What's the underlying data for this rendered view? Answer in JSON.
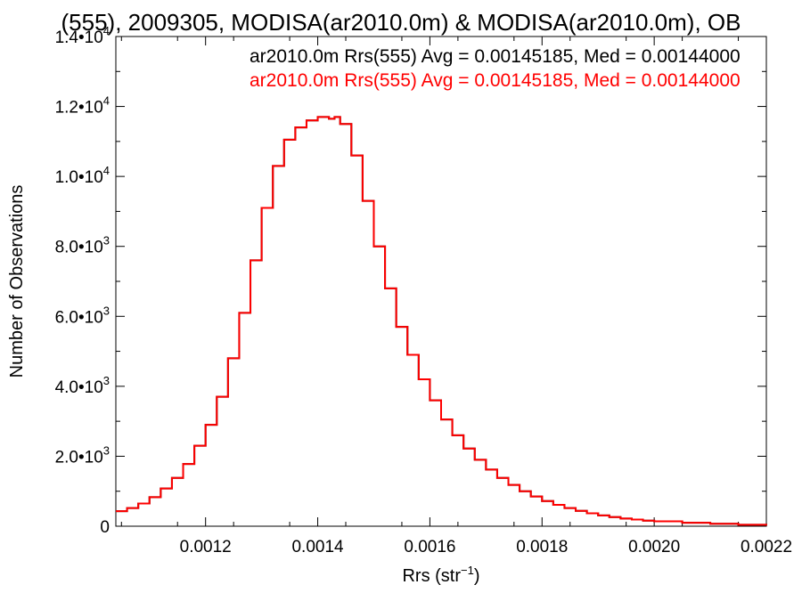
{
  "chart_data": {
    "type": "line",
    "title": "(555), 2009305, MODISA(ar2010.0m) & MODISA(ar2010.0m), OB",
    "xlabel": {
      "text": "Rrs (str",
      "sup": "−1",
      "suffix": ")"
    },
    "ylabel": "Number of Observations",
    "xlim": [
      0.00104,
      0.0022
    ],
    "ylim": [
      0,
      14000
    ],
    "x_ticks": [
      {
        "value": 0.0012,
        "label": "0.0012"
      },
      {
        "value": 0.0014,
        "label": "0.0014"
      },
      {
        "value": 0.0016,
        "label": "0.0016"
      },
      {
        "value": 0.0018,
        "label": "0.0018"
      },
      {
        "value": 0.002,
        "label": "0.0020"
      },
      {
        "value": 0.0022,
        "label": "0.0022"
      }
    ],
    "y_ticks": [
      {
        "value": 0,
        "label": "0",
        "exp": ""
      },
      {
        "value": 2000,
        "label": "2.0•10",
        "exp": "3"
      },
      {
        "value": 4000,
        "label": "4.0•10",
        "exp": "3"
      },
      {
        "value": 6000,
        "label": "6.0•10",
        "exp": "3"
      },
      {
        "value": 8000,
        "label": "8.0•10",
        "exp": "3"
      },
      {
        "value": 10000,
        "label": "1.0•10",
        "exp": "4"
      },
      {
        "value": 12000,
        "label": "1.2•10",
        "exp": "4"
      },
      {
        "value": 14000,
        "label": "1.4•10",
        "exp": "4"
      }
    ],
    "series": [
      {
        "name": "ar2010.0m Rrs(555) Avg = 0.00145185, Med = 0.00144000",
        "color": "#000000",
        "style": "step",
        "x": [
          0.00104,
          0.00106,
          0.00108,
          0.0011,
          0.00112,
          0.00114,
          0.00116,
          0.00118,
          0.0012,
          0.00122,
          0.00124,
          0.00126,
          0.00128,
          0.0013,
          0.00132,
          0.00134,
          0.00136,
          0.00138,
          0.0014,
          0.00142,
          0.00143,
          0.00144,
          0.00146,
          0.00148,
          0.0015,
          0.00152,
          0.00154,
          0.00156,
          0.00158,
          0.0016,
          0.00162,
          0.00164,
          0.00166,
          0.00168,
          0.0017,
          0.00172,
          0.00174,
          0.00176,
          0.00178,
          0.0018,
          0.00182,
          0.00184,
          0.00186,
          0.00188,
          0.0019,
          0.00192,
          0.00194,
          0.00196,
          0.00198,
          0.002,
          0.00205,
          0.0021,
          0.00215,
          0.0022
        ],
        "y": [
          430,
          520,
          650,
          830,
          1080,
          1380,
          1780,
          2300,
          2900,
          3700,
          4800,
          6100,
          7600,
          9100,
          10300,
          11050,
          11400,
          11600,
          11700,
          11650,
          11700,
          11500,
          10600,
          9300,
          8000,
          6800,
          5700,
          4900,
          4200,
          3600,
          3050,
          2600,
          2220,
          1900,
          1620,
          1380,
          1180,
          1000,
          850,
          720,
          610,
          520,
          440,
          370,
          310,
          260,
          220,
          190,
          160,
          140,
          100,
          70,
          40,
          20
        ]
      },
      {
        "name": "ar2010.0m Rrs(555) Avg = 0.00145185, Med = 0.00144000",
        "color": "#ff0000",
        "style": "step",
        "x": [
          0.00104,
          0.00106,
          0.00108,
          0.0011,
          0.00112,
          0.00114,
          0.00116,
          0.00118,
          0.0012,
          0.00122,
          0.00124,
          0.00126,
          0.00128,
          0.0013,
          0.00132,
          0.00134,
          0.00136,
          0.00138,
          0.0014,
          0.00142,
          0.00143,
          0.00144,
          0.00146,
          0.00148,
          0.0015,
          0.00152,
          0.00154,
          0.00156,
          0.00158,
          0.0016,
          0.00162,
          0.00164,
          0.00166,
          0.00168,
          0.0017,
          0.00172,
          0.00174,
          0.00176,
          0.00178,
          0.0018,
          0.00182,
          0.00184,
          0.00186,
          0.00188,
          0.0019,
          0.00192,
          0.00194,
          0.00196,
          0.00198,
          0.002,
          0.00205,
          0.0021,
          0.00215,
          0.0022
        ],
        "y": [
          430,
          520,
          650,
          830,
          1080,
          1380,
          1780,
          2300,
          2900,
          3700,
          4800,
          6100,
          7600,
          9100,
          10300,
          11050,
          11400,
          11600,
          11700,
          11650,
          11700,
          11500,
          10600,
          9300,
          8000,
          6800,
          5700,
          4900,
          4200,
          3600,
          3050,
          2600,
          2220,
          1900,
          1620,
          1380,
          1180,
          1000,
          850,
          720,
          610,
          520,
          440,
          370,
          310,
          260,
          220,
          190,
          160,
          140,
          100,
          70,
          40,
          20
        ]
      }
    ],
    "legend_position": "top-right"
  }
}
